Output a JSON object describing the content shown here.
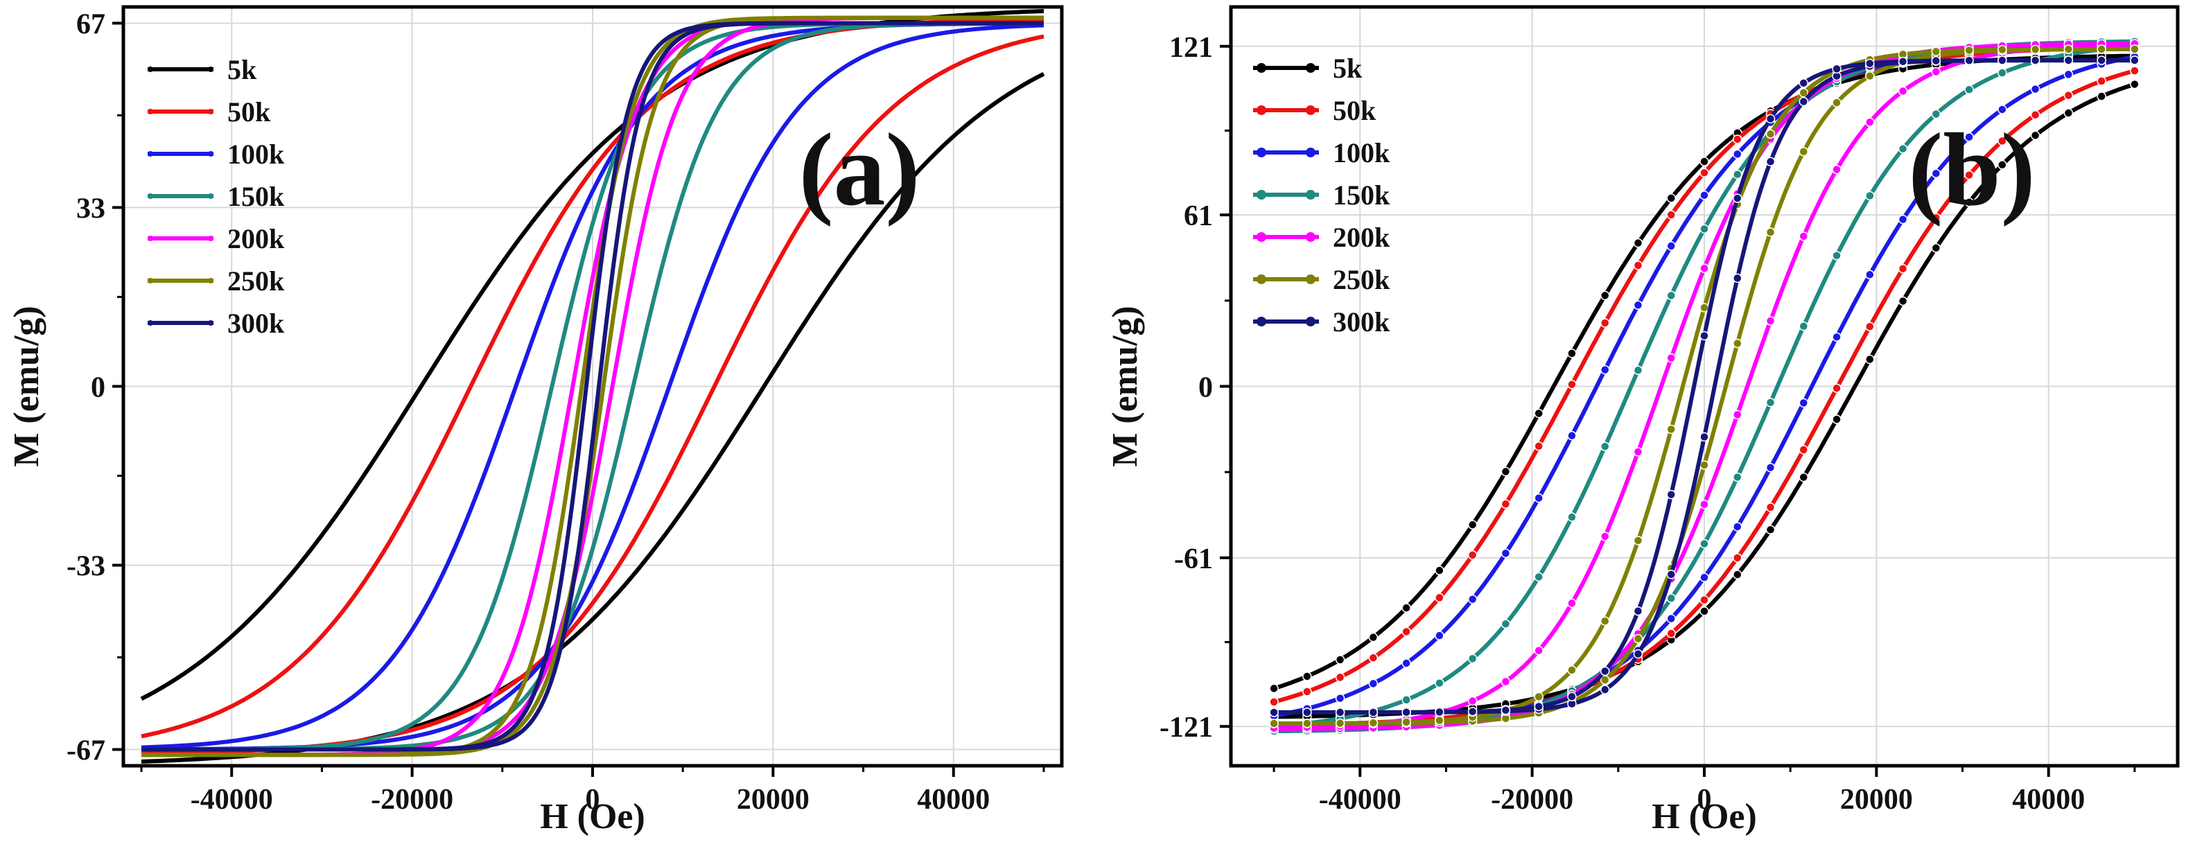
{
  "chart_data": [
    {
      "type": "line",
      "panel_label": "(a)",
      "xlabel": "H (Oe)",
      "ylabel": "M (emu/g)",
      "xlim": [
        -52000,
        52000
      ],
      "ylim": [
        -70,
        70
      ],
      "x_ticks": [
        -40000,
        -20000,
        0,
        20000,
        40000
      ],
      "x_tick_labels": [
        "-40000",
        "-20000",
        "0",
        "20000",
        "40000"
      ],
      "y_ticks": [
        -67,
        -33,
        0,
        33,
        67
      ],
      "y_tick_labels": [
        "-67",
        "-33",
        "0",
        "33",
        "67"
      ],
      "grid": true,
      "legend_position": "top-left",
      "h_max": 50000,
      "series": [
        {
          "name": "5k",
          "color": "#000000",
          "Ms": 70,
          "Hc": 19000,
          "Mr": 43
        },
        {
          "name": "50k",
          "color": "#ee1111",
          "Ms": 68,
          "Hc": 13500,
          "Mr": 40
        },
        {
          "name": "100k",
          "color": "#1a1ae6",
          "Ms": 67,
          "Hc": 8500,
          "Mr": 36
        },
        {
          "name": "150k",
          "color": "#1f8a80",
          "Ms": 67,
          "Hc": 4500,
          "Mr": 30
        },
        {
          "name": "200k",
          "color": "#ff00ff",
          "Ms": 68,
          "Hc": 2200,
          "Mr": 20
        },
        {
          "name": "250k",
          "color": "#808000",
          "Ms": 68,
          "Hc": 1200,
          "Mr": 14
        },
        {
          "name": "300k",
          "color": "#16167a",
          "Ms": 67,
          "Hc": 700,
          "Mr": 10
        }
      ]
    },
    {
      "type": "line",
      "panel_label": "(b)",
      "xlabel": "H (Oe)",
      "ylabel": "M (emu/g)",
      "xlim": [
        -55000,
        55000
      ],
      "ylim": [
        -135,
        135
      ],
      "x_ticks": [
        -40000,
        -20000,
        0,
        20000,
        40000
      ],
      "x_tick_labels": [
        "-40000",
        "-20000",
        "0",
        "20000",
        "40000"
      ],
      "y_ticks": [
        -121,
        -61,
        0,
        61,
        121
      ],
      "y_tick_labels": [
        "-121",
        "-61",
        "0",
        "61",
        "121"
      ],
      "grid": true,
      "legend_position": "top-left",
      "h_max": 50000,
      "series": [
        {
          "name": "5k",
          "color": "#000000",
          "Ms": 118,
          "Hc": 17500,
          "Mr": 80
        },
        {
          "name": "50k",
          "color": "#ee1111",
          "Ms": 121,
          "Hc": 15500,
          "Mr": 76
        },
        {
          "name": "100k",
          "color": "#1a1ae6",
          "Ms": 123,
          "Hc": 12500,
          "Mr": 68
        },
        {
          "name": "150k",
          "color": "#1f8a80",
          "Ms": 123,
          "Hc": 8500,
          "Mr": 56
        },
        {
          "name": "200k",
          "color": "#ff00ff",
          "Ms": 122,
          "Hc": 5000,
          "Mr": 42
        },
        {
          "name": "250k",
          "color": "#808000",
          "Ms": 120,
          "Hc": 2500,
          "Mr": 28
        },
        {
          "name": "300k",
          "color": "#16167a",
          "Ms": 116,
          "Hc": 1200,
          "Mr": 18
        }
      ]
    }
  ]
}
